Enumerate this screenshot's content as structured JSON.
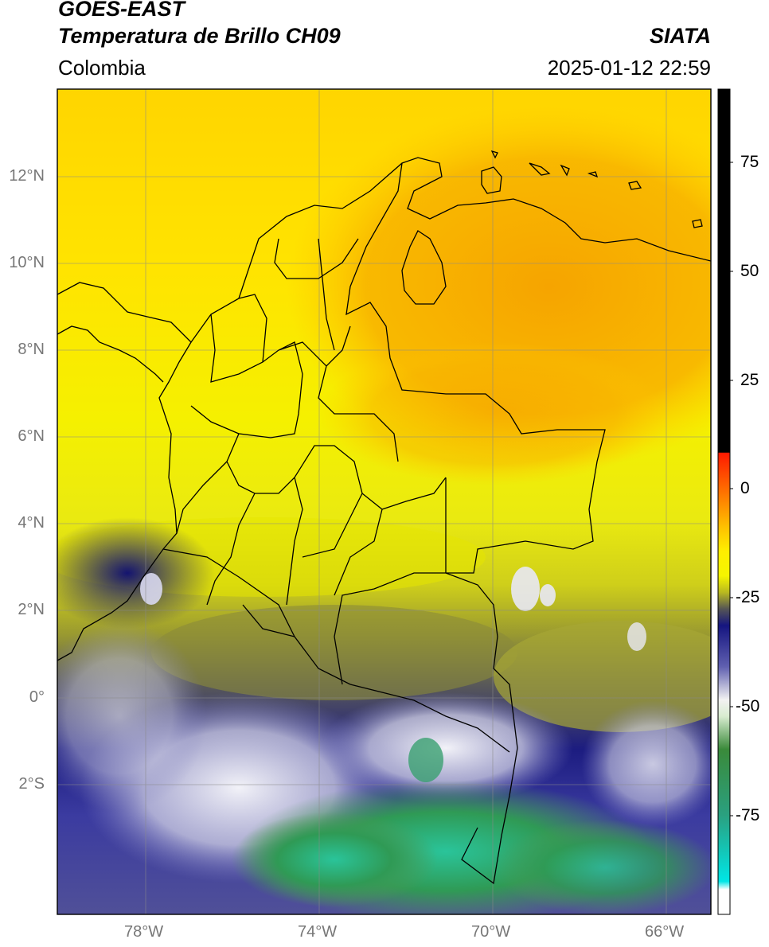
{
  "header": {
    "satellite": "GOES-EAST",
    "product": "Temperatura de Brillo CH09",
    "region": "Colombia",
    "source": "SIATA",
    "datetime": "2025-01-12 22:59"
  },
  "map": {
    "lat_ticks": [
      "12°N",
      "10°N",
      "8°N",
      "6°N",
      "4°N",
      "2°N",
      "0°",
      "2°S"
    ],
    "lon_ticks": [
      "78°W",
      "74°W",
      "70°W",
      "66°W"
    ],
    "lon_range": [
      -80,
      -65
    ],
    "lat_range": [
      -5,
      14
    ]
  },
  "colorbar": {
    "ticks": [
      "75",
      "50",
      "25",
      "0",
      "-25",
      "-50",
      "-75"
    ]
  }
}
